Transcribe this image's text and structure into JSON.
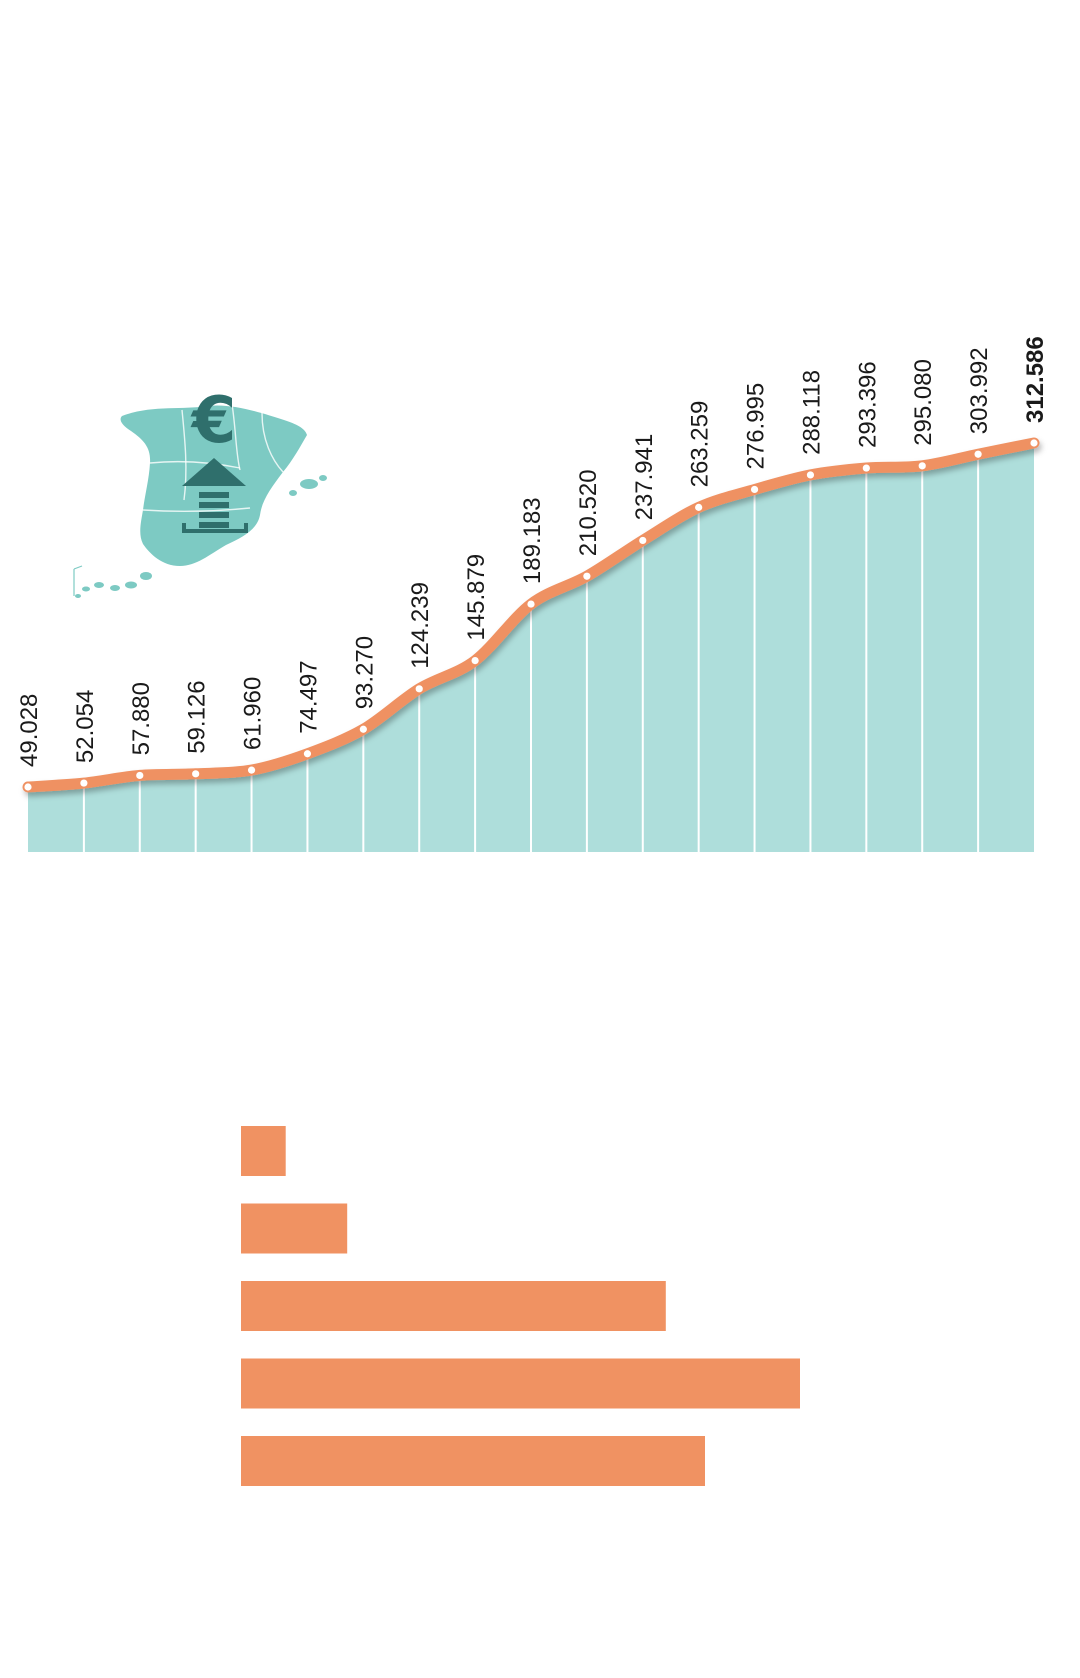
{
  "colors": {
    "area_fill": "#aededb",
    "divider": "#ffffff",
    "line": "#ef9162",
    "marker_fill": "#ffffff",
    "bar": "#f09262",
    "label": "#1a1a1a",
    "map_fill": "#7dcac3",
    "icon": "#2f6f6c"
  },
  "icons": {
    "map": "spain-map-icon",
    "euro": "euro-up-arrow-icon"
  },
  "chart_data": [
    {
      "type": "area",
      "series": [
        {
          "values": [
            49028,
            52054,
            57880,
            59126,
            61960,
            74497,
            93270,
            124239,
            145879,
            189183,
            210520,
            237941,
            263259,
            276995,
            288118,
            293396,
            295080,
            303992,
            312586
          ]
        }
      ],
      "data_labels": [
        "49.028",
        "52.054",
        "57.880",
        "59.126",
        "61.960",
        "74.497",
        "93.270",
        "124.239",
        "145.879",
        "189.183",
        "210.520",
        "237.941",
        "263.259",
        "276.995",
        "288.118",
        "293.396",
        "295.080",
        "303.992",
        "312.586"
      ],
      "highlight_last": true,
      "grid": false,
      "legend": "none"
    },
    {
      "type": "bar",
      "orientation": "horizontal",
      "values": [
        8,
        19,
        76,
        100,
        83
      ],
      "grid": false,
      "legend": "none"
    }
  ]
}
